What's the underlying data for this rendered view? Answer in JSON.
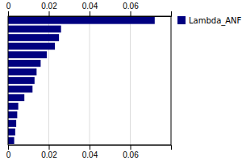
{
  "chart_data": {
    "type": "bar",
    "orientation": "horizontal",
    "categories": [
      null,
      null,
      null,
      null,
      null,
      null,
      null,
      null,
      null,
      null,
      null,
      null,
      null,
      null,
      null
    ],
    "series": [
      {
        "name": "Lambda_ANF",
        "color": "#000080",
        "values": [
          0.072,
          0.026,
          0.025,
          0.023,
          0.019,
          0.016,
          0.014,
          0.013,
          0.012,
          0.008,
          0.005,
          0.0045,
          0.004,
          0.0035,
          0.003
        ]
      }
    ],
    "xlim": [
      0,
      0.08
    ],
    "xticks": [
      0,
      0.02,
      0.04,
      0.06
    ],
    "grid": true,
    "legend": "upper right"
  }
}
